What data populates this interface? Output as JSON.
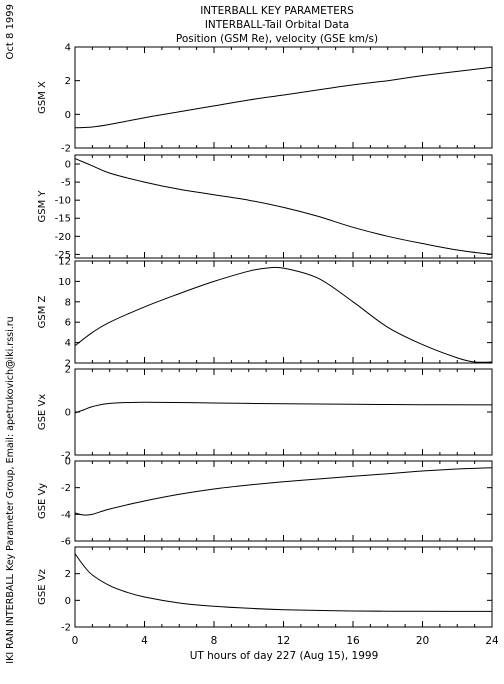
{
  "header": {
    "title": "INTERBALL KEY PARAMETERS",
    "subtitle": "INTERBALL-Tail Orbital Data",
    "subtitle2": "Position (GSM Re), velocity (GSE km/s)"
  },
  "side_date": "Oct  8 1999",
  "side_credit": "IKI RAN INTERBALL Key Parameter Group, Email: apetrukovich@iki.rssi.ru",
  "chart_data": [
    {
      "type": "line",
      "ylabel": "GSM X",
      "ylim": [
        -2,
        4
      ],
      "yticks": [
        -2,
        0,
        2,
        4
      ],
      "x": [
        0,
        1,
        2,
        4,
        6,
        8,
        10,
        12,
        14,
        16,
        18,
        20,
        22,
        24
      ],
      "series": [
        {
          "values": [
            -0.8,
            -0.75,
            -0.6,
            -0.2,
            0.15,
            0.5,
            0.85,
            1.15,
            1.45,
            1.75,
            2.0,
            2.3,
            2.55,
            2.8
          ]
        }
      ]
    },
    {
      "type": "line",
      "ylabel": "GSM Y",
      "ylim": [
        -26,
        2.5
      ],
      "yticks": [
        -25,
        -20,
        -15,
        -10,
        -5,
        0
      ],
      "x": [
        0,
        1,
        2,
        4,
        6,
        8,
        10,
        12,
        14,
        16,
        18,
        20,
        22,
        24
      ],
      "series": [
        {
          "values": [
            1.5,
            -0.5,
            -2.5,
            -5.0,
            -7.0,
            -8.5,
            -10.0,
            -12.0,
            -14.5,
            -17.5,
            -20.0,
            -22.0,
            -23.8,
            -25.0
          ]
        }
      ]
    },
    {
      "type": "line",
      "ylabel": "GSM Z",
      "ylim": [
        2,
        12
      ],
      "yticks": [
        2,
        4,
        6,
        8,
        10,
        12
      ],
      "x": [
        0,
        1,
        2,
        4,
        6,
        8,
        10,
        11,
        12,
        14,
        16,
        18,
        20,
        22,
        23,
        24
      ],
      "series": [
        {
          "values": [
            3.7,
            5.0,
            6.0,
            7.5,
            8.8,
            10.0,
            11.0,
            11.3,
            11.3,
            10.3,
            8.0,
            5.5,
            3.8,
            2.5,
            2.1,
            2.1
          ]
        }
      ]
    },
    {
      "type": "line",
      "ylabel": "GSE Vx",
      "ylim": [
        -2,
        2
      ],
      "yticks": [
        -2,
        0,
        2
      ],
      "x": [
        0,
        0.5,
        1,
        2,
        4,
        8,
        12,
        16,
        20,
        24
      ],
      "series": [
        {
          "values": [
            -0.05,
            0.1,
            0.25,
            0.4,
            0.45,
            0.42,
            0.38,
            0.36,
            0.34,
            0.33
          ]
        }
      ]
    },
    {
      "type": "line",
      "ylabel": "GSE Vy",
      "ylim": [
        -6,
        0
      ],
      "yticks": [
        -6,
        -4,
        -2,
        0
      ],
      "x": [
        0,
        0.5,
        1,
        2,
        4,
        6,
        8,
        10,
        12,
        14,
        16,
        18,
        20,
        22,
        24
      ],
      "series": [
        {
          "values": [
            -3.9,
            -4.05,
            -4.0,
            -3.6,
            -3.0,
            -2.5,
            -2.1,
            -1.8,
            -1.55,
            -1.35,
            -1.15,
            -0.95,
            -0.75,
            -0.6,
            -0.5
          ]
        }
      ]
    },
    {
      "type": "line",
      "ylabel": "GSE Vz",
      "ylim": [
        -2,
        4
      ],
      "yticks": [
        -2,
        0,
        2
      ],
      "x": [
        0,
        0.5,
        1,
        2,
        3,
        4,
        6,
        8,
        10,
        12,
        16,
        20,
        24
      ],
      "series": [
        {
          "values": [
            3.5,
            2.6,
            1.9,
            1.1,
            0.6,
            0.25,
            -0.2,
            -0.45,
            -0.6,
            -0.7,
            -0.8,
            -0.82,
            -0.83
          ]
        }
      ]
    }
  ],
  "x_axis": {
    "xlim": [
      0,
      24
    ],
    "ticks": [
      0,
      4,
      8,
      12,
      16,
      20,
      24
    ],
    "label": "UT hours of day 227 (Aug 15), 1999"
  }
}
